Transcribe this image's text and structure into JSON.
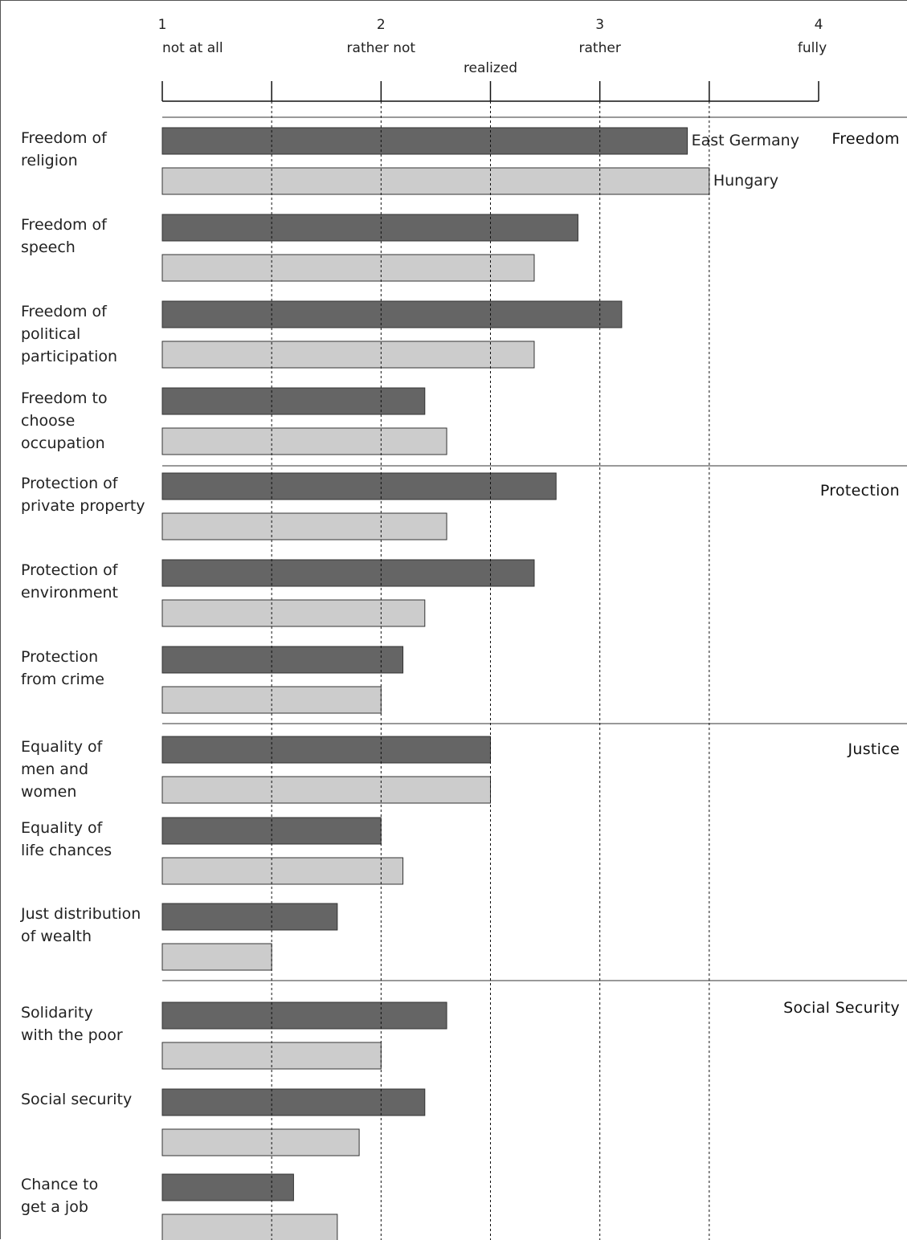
{
  "chart_data": {
    "type": "bar",
    "orientation": "horizontal",
    "scale": {
      "min": 1,
      "max": 4,
      "ticks": [
        1,
        1.5,
        2,
        2.5,
        3,
        3.5,
        4
      ],
      "points": [
        {
          "value": 1,
          "number": "1",
          "label": "not at all"
        },
        {
          "value": 2,
          "number": "2",
          "label": "rather not"
        },
        {
          "value": 2.5,
          "number": "",
          "label": "realized"
        },
        {
          "value": 3,
          "number": "3",
          "label": "rather"
        },
        {
          "value": 4,
          "number": "4",
          "label": "fully"
        }
      ]
    },
    "series": [
      {
        "name": "East Germany",
        "color": "#656565"
      },
      {
        "name": "Hungary",
        "color": "#cccccc"
      }
    ],
    "groups": [
      {
        "name": "Freedom",
        "items": [
          {
            "label": [
              "Freedom of",
              "religion"
            ],
            "values": [
              3.4,
              3.5
            ]
          },
          {
            "label": [
              "Freedom of",
              "speech"
            ],
            "values": [
              2.9,
              2.7
            ]
          },
          {
            "label": [
              "Freedom of",
              "political",
              "participation"
            ],
            "values": [
              3.1,
              2.7
            ]
          },
          {
            "label": [
              "Freedom to",
              "choose",
              "occupation"
            ],
            "values": [
              2.2,
              2.3
            ]
          }
        ]
      },
      {
        "name": "Protection",
        "items": [
          {
            "label": [
              "Protection of",
              "private property"
            ],
            "values": [
              2.8,
              2.3
            ]
          },
          {
            "label": [
              "Protection of",
              "environment"
            ],
            "values": [
              2.7,
              2.2
            ]
          },
          {
            "label": [
              "Protection",
              "from crime"
            ],
            "values": [
              2.1,
              2.0
            ]
          }
        ]
      },
      {
        "name": "Justice",
        "items": [
          {
            "label": [
              "Equality of",
              "men and",
              "women"
            ],
            "values": [
              2.5,
              2.5
            ]
          },
          {
            "label": [
              "Equality of",
              "life chances"
            ],
            "values": [
              2.0,
              2.1
            ]
          },
          {
            "label": [
              "Just distribution",
              "of wealth"
            ],
            "values": [
              1.8,
              1.5
            ]
          }
        ]
      },
      {
        "name": "Social Security",
        "items": [
          {
            "label": [
              "Solidarity",
              "with the poor"
            ],
            "values": [
              2.3,
              2.0
            ]
          },
          {
            "label": [
              "Social security"
            ],
            "values": [
              2.2,
              1.9
            ]
          },
          {
            "label": [
              "Chance to",
              "get a job"
            ],
            "values": [
              1.6,
              1.8
            ]
          }
        ]
      }
    ]
  }
}
